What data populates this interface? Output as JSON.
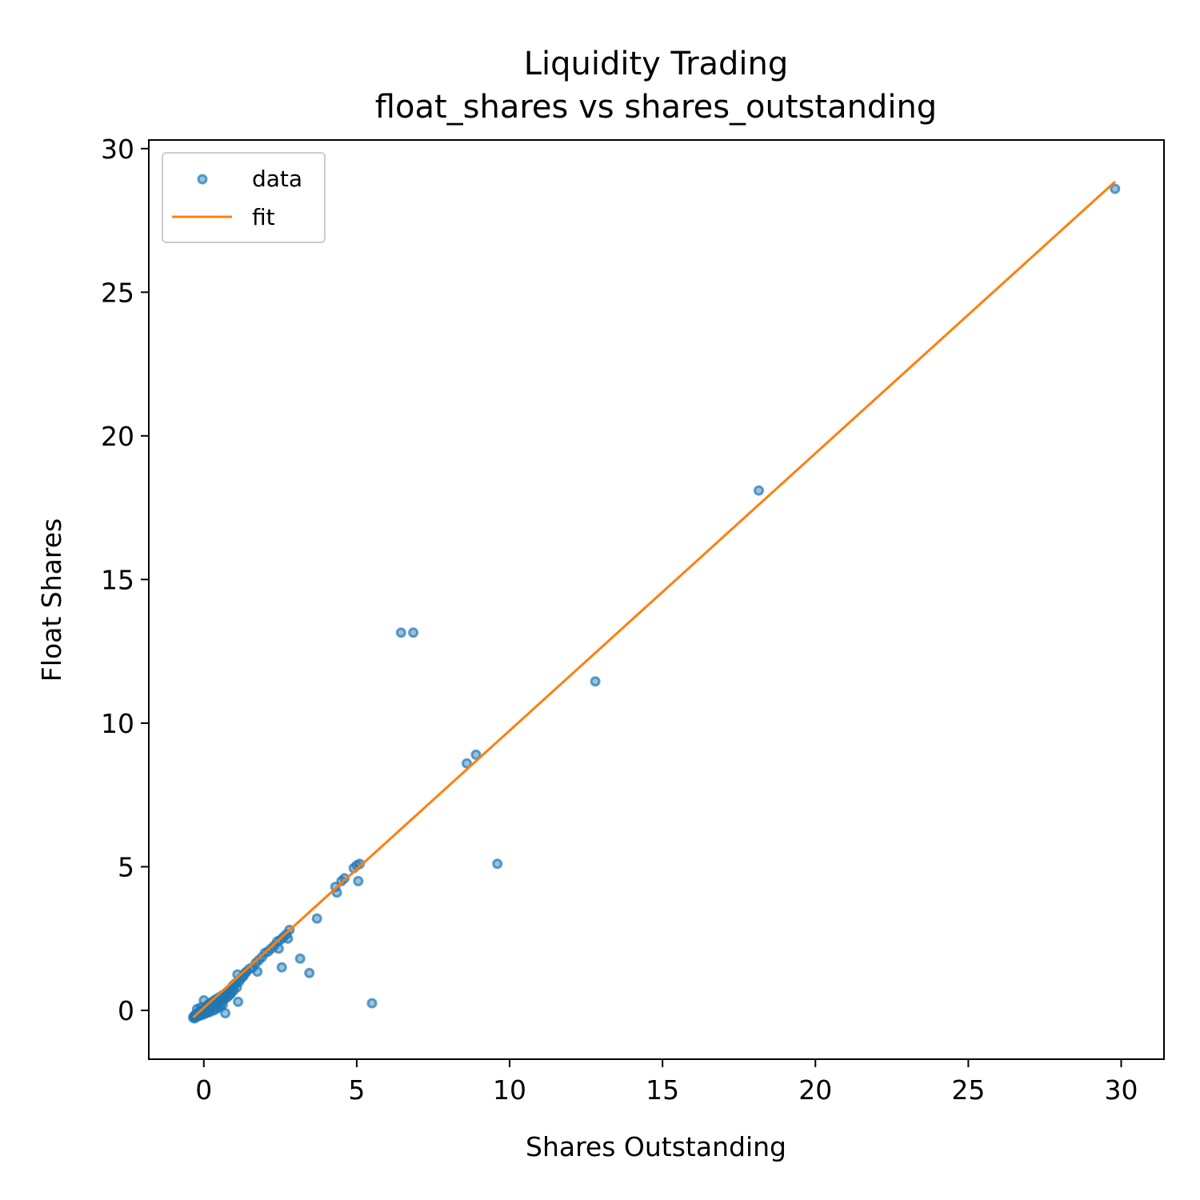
{
  "chart_data": {
    "type": "scatter",
    "title": "Liquidity Trading",
    "subtitle": "float_shares vs shares_outstanding",
    "xlabel": "Shares Outstanding",
    "ylabel": "Float Shares",
    "xlim": [
      -1.8,
      31.4
    ],
    "ylim": [
      -1.7,
      30.3
    ],
    "xticks": [
      0,
      5,
      10,
      15,
      20,
      25,
      30
    ],
    "yticks": [
      0,
      5,
      10,
      15,
      20,
      25,
      30
    ],
    "grid": false,
    "legend": {
      "placement": "upper-left",
      "entries": [
        "data",
        "fit"
      ]
    },
    "colors": {
      "data": "#1f77b4",
      "fit": "#ff7f0e"
    },
    "series": [
      {
        "name": "data",
        "kind": "scatter",
        "points": [
          [
            -0.35,
            -0.25
          ],
          [
            -0.32,
            -0.2
          ],
          [
            -0.3,
            -0.28
          ],
          [
            -0.28,
            -0.15
          ],
          [
            -0.25,
            -0.22
          ],
          [
            -0.22,
            0.05
          ],
          [
            -0.2,
            -0.1
          ],
          [
            -0.18,
            -0.2
          ],
          [
            -0.15,
            -0.05
          ],
          [
            -0.12,
            -0.18
          ],
          [
            -0.1,
            0.1
          ],
          [
            -0.08,
            -0.12
          ],
          [
            -0.05,
            0.0
          ],
          [
            -0.02,
            -0.15
          ],
          [
            0.0,
            0.35
          ],
          [
            0.02,
            0.05
          ],
          [
            0.05,
            -0.1
          ],
          [
            0.08,
            0.15
          ],
          [
            0.1,
            0.0
          ],
          [
            0.12,
            -0.08
          ],
          [
            0.15,
            0.2
          ],
          [
            0.18,
            0.05
          ],
          [
            0.2,
            -0.05
          ],
          [
            0.22,
            0.25
          ],
          [
            0.25,
            0.1
          ],
          [
            0.28,
            0.3
          ],
          [
            0.3,
            0.15
          ],
          [
            0.32,
            0.0
          ],
          [
            0.35,
            0.35
          ],
          [
            0.38,
            0.2
          ],
          [
            0.4,
            0.05
          ],
          [
            0.42,
            0.4
          ],
          [
            0.45,
            0.25
          ],
          [
            0.48,
            0.1
          ],
          [
            0.5,
            0.45
          ],
          [
            0.52,
            0.3
          ],
          [
            0.55,
            0.15
          ],
          [
            0.58,
            0.5
          ],
          [
            0.6,
            0.35
          ],
          [
            0.62,
            0.2
          ],
          [
            0.65,
            0.55
          ],
          [
            0.68,
            0.4
          ],
          [
            0.7,
            -0.1
          ],
          [
            0.72,
            0.6
          ],
          [
            0.75,
            0.45
          ],
          [
            0.78,
            0.65
          ],
          [
            0.8,
            0.5
          ],
          [
            0.82,
            0.7
          ],
          [
            0.85,
            0.55
          ],
          [
            0.88,
            0.75
          ],
          [
            0.9,
            0.6
          ],
          [
            0.92,
            0.8
          ],
          [
            0.95,
            0.85
          ],
          [
            0.98,
            0.7
          ],
          [
            1.0,
            0.9
          ],
          [
            1.05,
            0.95
          ],
          [
            1.08,
            0.8
          ],
          [
            1.1,
            1.25
          ],
          [
            1.12,
            0.3
          ],
          [
            1.15,
            1.0
          ],
          [
            1.2,
            1.1
          ],
          [
            1.25,
            1.15
          ],
          [
            1.3,
            1.2
          ],
          [
            1.35,
            1.3
          ],
          [
            1.4,
            1.35
          ],
          [
            1.5,
            1.45
          ],
          [
            1.6,
            1.5
          ],
          [
            1.7,
            1.65
          ],
          [
            1.75,
            1.35
          ],
          [
            1.8,
            1.75
          ],
          [
            1.9,
            1.85
          ],
          [
            2.0,
            2.0
          ],
          [
            2.1,
            2.05
          ],
          [
            2.2,
            2.15
          ],
          [
            2.3,
            2.25
          ],
          [
            2.4,
            2.4
          ],
          [
            2.45,
            2.15
          ],
          [
            2.5,
            2.45
          ],
          [
            2.55,
            1.5
          ],
          [
            2.6,
            2.55
          ],
          [
            2.7,
            2.65
          ],
          [
            2.75,
            2.5
          ],
          [
            2.8,
            2.8
          ],
          [
            3.15,
            1.8
          ],
          [
            3.45,
            1.3
          ],
          [
            3.7,
            3.2
          ],
          [
            4.3,
            4.3
          ],
          [
            4.35,
            4.1
          ],
          [
            4.5,
            4.5
          ],
          [
            4.6,
            4.6
          ],
          [
            4.9,
            4.95
          ],
          [
            5.0,
            5.05
          ],
          [
            5.05,
            4.5
          ],
          [
            5.1,
            5.1
          ],
          [
            5.5,
            0.25
          ],
          [
            6.45,
            13.15
          ],
          [
            6.85,
            13.15
          ],
          [
            8.6,
            8.6
          ],
          [
            8.9,
            8.9
          ],
          [
            9.6,
            5.1
          ],
          [
            12.8,
            11.45
          ],
          [
            18.15,
            18.1
          ],
          [
            29.8,
            28.6
          ]
        ]
      },
      {
        "name": "fit",
        "kind": "line",
        "points": [
          [
            -0.35,
            -0.25
          ],
          [
            29.8,
            28.85
          ]
        ]
      }
    ]
  }
}
